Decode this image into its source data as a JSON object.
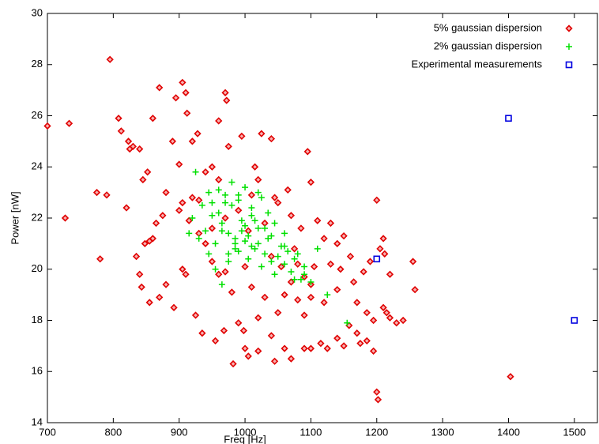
{
  "chart_data": {
    "type": "scatter",
    "xlabel": "Freq [Hz]",
    "ylabel": "Power [nW]",
    "xlim": [
      700,
      1535
    ],
    "ylim": [
      14,
      30
    ],
    "xticks": [
      700,
      800,
      900,
      1000,
      1100,
      1200,
      1300,
      1400,
      1500
    ],
    "yticks": [
      14,
      16,
      18,
      20,
      22,
      24,
      26,
      28,
      30
    ],
    "legend": "top-right",
    "series": [
      {
        "name": "5% gaussian dispersion",
        "color": "#e00000",
        "marker": "diamond",
        "x": [
          700,
          733,
          727,
          780,
          775,
          790,
          795,
          808,
          812,
          825,
          823,
          830,
          840,
          845,
          852,
          848,
          860,
          870,
          890,
          900,
          905,
          910,
          895,
          912,
          920,
          928,
          970,
          972,
          960,
          975,
          995,
          1025,
          1040,
          1095,
          1100,
          820,
          835,
          840,
          843,
          855,
          870,
          880,
          892,
          905,
          910,
          925,
          935,
          955,
          968,
          982,
          990,
          998,
          1000,
          1005,
          1020,
          1040,
          1045,
          1060,
          1070,
          1090,
          1100,
          1115,
          1125,
          1140,
          1150,
          1158,
          1170,
          1175,
          1185,
          1195,
          1200,
          1202,
          1210,
          1215,
          1220,
          1230,
          1258,
          1255,
          1210,
          1212,
          1205,
          1200,
          1220,
          1180,
          1190,
          1160,
          1150,
          1130,
          1120,
          1110,
          1085,
          1070,
          1065,
          1050,
          1045,
          1020,
          1015,
          1010,
          960,
          950,
          940,
          930,
          920,
          905,
          900,
          880,
          875,
          865,
          860,
          855,
          1403,
          1130,
          1140,
          1120,
          1100,
          1090,
          1080,
          1070,
          1060,
          1050,
          1030,
          1020,
          1010,
          980,
          970,
          960,
          950,
          940,
          930,
          1000,
          1040,
          1055,
          1075,
          1090,
          1170,
          1165,
          1145,
          1140,
          1105,
          990,
          970,
          1005,
          1030,
          1080,
          950,
          915,
          1100,
          1185,
          1195,
          1240
        ],
        "y": [
          25.6,
          25.7,
          22.0,
          20.4,
          23.0,
          22.9,
          28.2,
          25.9,
          25.4,
          24.7,
          25.0,
          24.8,
          24.7,
          23.5,
          23.8,
          21.0,
          25.9,
          27.1,
          25.0,
          24.1,
          27.3,
          26.9,
          26.7,
          26.1,
          25.0,
          25.3,
          26.9,
          26.6,
          25.8,
          24.8,
          25.2,
          25.3,
          25.1,
          24.6,
          23.4,
          22.4,
          20.5,
          19.8,
          19.3,
          18.7,
          18.9,
          19.4,
          18.5,
          20.0,
          19.8,
          18.2,
          17.5,
          17.2,
          17.6,
          16.3,
          17.9,
          17.6,
          16.9,
          16.6,
          16.8,
          17.4,
          16.4,
          16.9,
          16.5,
          16.9,
          16.9,
          17.1,
          16.9,
          17.3,
          17.0,
          17.8,
          17.5,
          17.1,
          17.2,
          16.8,
          15.2,
          14.9,
          18.5,
          18.3,
          18.1,
          17.9,
          19.2,
          20.3,
          21.2,
          20.6,
          20.8,
          22.7,
          19.8,
          19.9,
          20.3,
          20.5,
          21.3,
          21.8,
          21.2,
          21.9,
          21.6,
          22.1,
          23.1,
          22.6,
          22.8,
          23.5,
          24.0,
          22.9,
          23.5,
          24.0,
          23.8,
          22.7,
          22.8,
          22.6,
          22.3,
          23.0,
          22.1,
          21.8,
          21.2,
          21.1,
          15.8,
          20.2,
          19.2,
          18.7,
          18.9,
          18.2,
          18.8,
          19.5,
          19.0,
          18.3,
          18.9,
          18.1,
          19.3,
          19.1,
          19.9,
          19.8,
          20.3,
          21.0,
          21.4,
          20.1,
          20.5,
          20.1,
          20.8,
          19.7,
          18.7,
          19.5,
          20.0,
          21.0,
          20.1,
          22.3,
          22.0,
          21.5,
          21.8,
          20.2,
          21.6,
          21.9,
          19.4,
          18.3,
          18.0,
          18.0
        ]
      },
      {
        "name": "2% gaussian dispersion",
        "color": "#00e000",
        "marker": "plus",
        "x": [
          920,
          925,
          935,
          940,
          945,
          950,
          955,
          960,
          965,
          970,
          975,
          980,
          985,
          990,
          995,
          1000,
          1005,
          1010,
          1015,
          1020,
          1025,
          1030,
          1035,
          1040,
          1045,
          1050,
          1055,
          1060,
          1065,
          1070,
          1075,
          1080,
          1085,
          1090,
          1100,
          1110,
          1125,
          1155,
          930,
          945,
          955,
          965,
          975,
          985,
          995,
          1005,
          1015,
          1025,
          1035,
          1045,
          1060,
          1075,
          1090,
          960,
          970,
          980,
          990,
          1000,
          1010,
          1020,
          950,
          965,
          985,
          1000,
          1020,
          1040,
          1060,
          975,
          990,
          1010,
          1030,
          915
        ],
        "y": [
          22.0,
          23.8,
          22.5,
          21.5,
          23.0,
          22.6,
          21.0,
          22.2,
          21.8,
          22.9,
          21.4,
          22.5,
          21.0,
          22.7,
          21.9,
          23.2,
          21.3,
          22.1,
          20.8,
          21.6,
          22.8,
          20.6,
          21.2,
          20.3,
          21.8,
          20.5,
          20.9,
          20.2,
          20.7,
          19.9,
          20.4,
          20.6,
          19.6,
          20.1,
          19.5,
          20.8,
          19.0,
          17.9,
          21.2,
          20.6,
          20.0,
          19.4,
          20.3,
          20.8,
          21.5,
          20.4,
          21.9,
          20.1,
          22.2,
          19.8,
          21.4,
          19.6,
          19.8,
          23.1,
          22.6,
          23.4,
          22.9,
          21.1,
          22.4,
          23.0,
          22.1,
          21.5,
          21.2,
          21.7,
          21.0,
          21.3,
          20.9,
          20.6,
          20.7,
          20.9,
          21.6,
          21.4
        ]
      },
      {
        "name": "Experimental measurements",
        "color": "#0000e0",
        "marker": "square",
        "x": [
          1400,
          1200,
          1500
        ],
        "y": [
          25.9,
          20.4,
          18.0
        ]
      }
    ]
  }
}
